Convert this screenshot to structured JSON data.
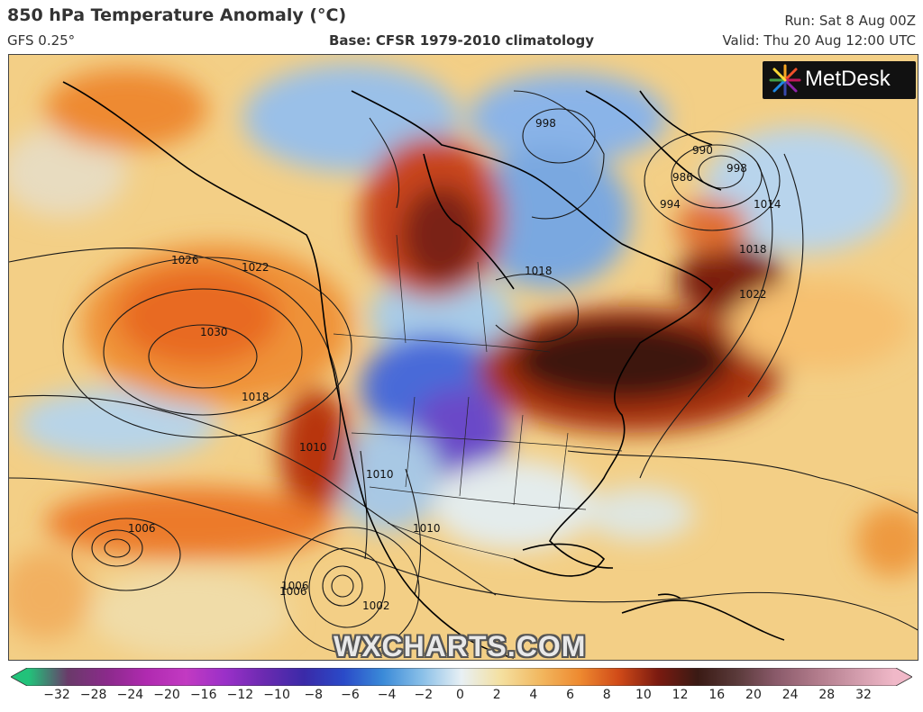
{
  "header": {
    "title": "850 hPa Temperature Anomaly (°C)",
    "model": "GFS 0.25°",
    "base": "Base: CFSR 1979-2010 climatology",
    "run": "Run: Sat 8 Aug 00Z",
    "valid": "Valid: Thu 20 Aug 12:00 UTC"
  },
  "logo": {
    "text": "MetDesk",
    "icon": "metdesk-starburst-logo"
  },
  "watermark": "WXCHARTS.COM",
  "isobars": [
    {
      "label": "1026",
      "icon": "isobar-label"
    },
    {
      "label": "1022",
      "icon": "isobar-label"
    },
    {
      "label": "1030",
      "icon": "isobar-label"
    },
    {
      "label": "1018",
      "icon": "isobar-label"
    },
    {
      "label": "1010",
      "icon": "isobar-label"
    },
    {
      "label": "1006",
      "icon": "isobar-label"
    },
    {
      "label": "1002",
      "icon": "isobar-label"
    },
    {
      "label": "1006",
      "icon": "isobar-label"
    },
    {
      "label": "998",
      "icon": "isobar-label"
    },
    {
      "label": "990",
      "icon": "isobar-label"
    },
    {
      "label": "986",
      "icon": "isobar-label"
    },
    {
      "label": "994",
      "icon": "isobar-label"
    },
    {
      "label": "998",
      "icon": "isobar-label"
    },
    {
      "label": "1014",
      "icon": "isobar-label"
    },
    {
      "label": "1018",
      "icon": "isobar-label"
    },
    {
      "label": "1022",
      "icon": "isobar-label"
    },
    {
      "label": "1018",
      "icon": "isobar-label"
    },
    {
      "label": "1010",
      "icon": "isobar-label"
    },
    {
      "label": "1010",
      "icon": "isobar-label"
    },
    {
      "label": "1006",
      "icon": "isobar-label"
    }
  ],
  "colorbar": {
    "ticks": [
      "−32",
      "−28",
      "−24",
      "−20",
      "−16",
      "−12",
      "−10",
      "−8",
      "−6",
      "−4",
      "−2",
      "0",
      "2",
      "4",
      "6",
      "8",
      "10",
      "12",
      "16",
      "20",
      "24",
      "28",
      "32"
    ],
    "colors": [
      "#22c27a",
      "#6a3a6a",
      "#8b2a8b",
      "#b02ab0",
      "#c23ac2",
      "#9a30c8",
      "#6a2ab0",
      "#3a2aa8",
      "#2a4ac8",
      "#3a8ad8",
      "#8ac0e8",
      "#e8f0f4",
      "#f4e0a0",
      "#f2b860",
      "#ee8a30",
      "#d04a18",
      "#7a1a10",
      "#3a1a14",
      "#5a3a3a",
      "#8a5a6a",
      "#b07a8a",
      "#d09aaa",
      "#f0b8c8"
    ]
  }
}
